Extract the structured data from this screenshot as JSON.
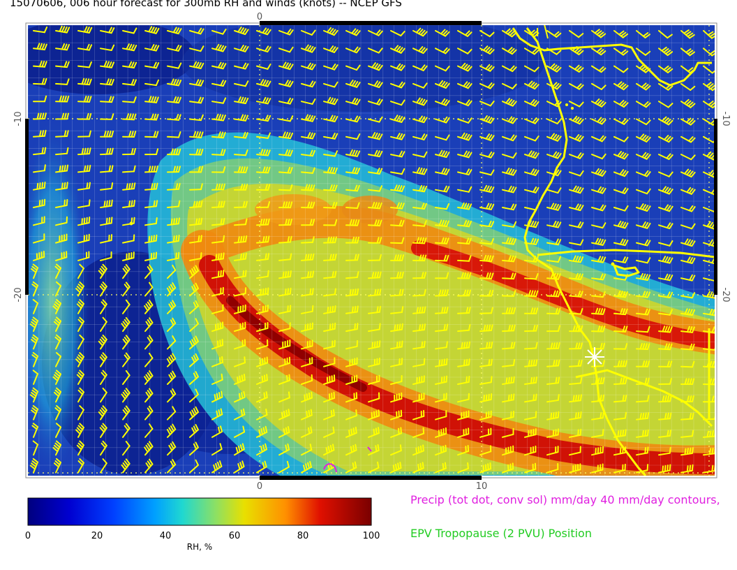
{
  "title": "15070606, 006 hour forecast for 300mb RH and winds (knots) -- NCEP GFS",
  "map": {
    "x_ticks": [
      {
        "value": "0"
      },
      {
        "value": "10"
      }
    ],
    "y_ticks": [
      {
        "value": "-10"
      },
      {
        "value": "-20"
      }
    ],
    "background_color": "#1a3fb8",
    "wind_barb_color": "#ffff00",
    "coastline_color": "#ffff00"
  },
  "colorbar": {
    "label": "RH, %",
    "ticks": [
      "0",
      "20",
      "40",
      "60",
      "80",
      "100"
    ],
    "colors": [
      "#00008f",
      "#0000ff",
      "#0080ff",
      "#00e0e0",
      "#7fd060",
      "#e0e000",
      "#ff8000",
      "#d00000",
      "#800000"
    ]
  },
  "legend": {
    "precip": "Precip (tot dot, conv sol) mm/day 40 mm/day contours,",
    "epv": "EPV Tropopause (2 PVU) Position",
    "precip_color": "#e020e0",
    "epv_color": "#22cc22"
  }
}
